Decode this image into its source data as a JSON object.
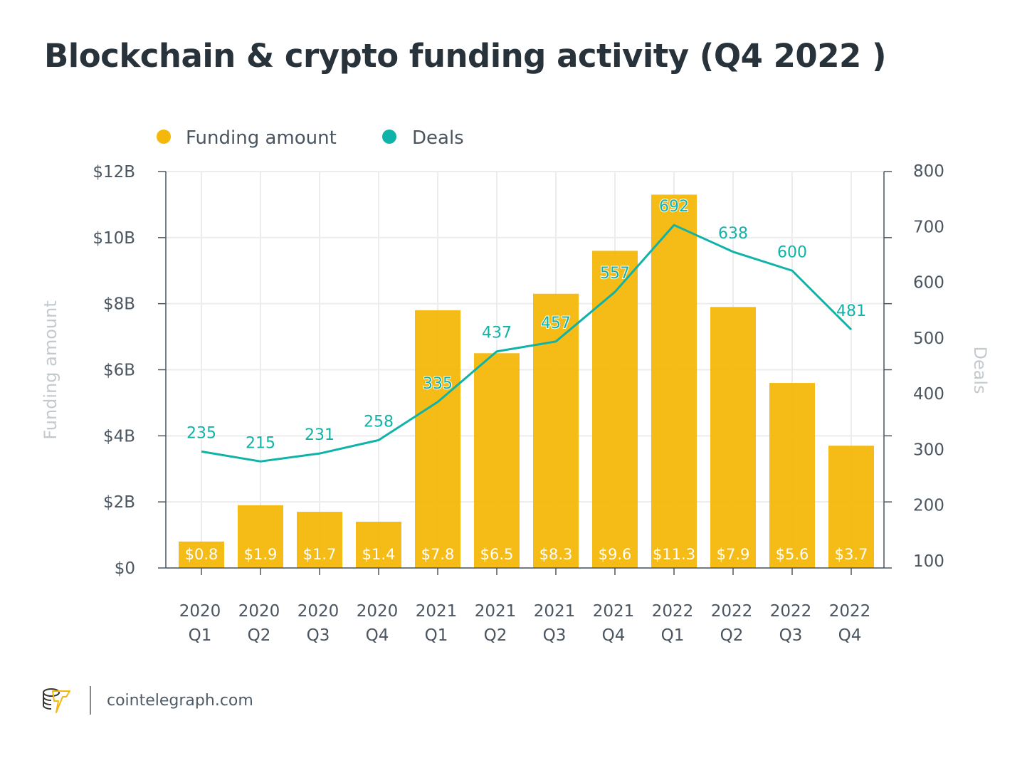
{
  "footer": {
    "site": "cointelegraph.com",
    "logo_text": "cointelegraph"
  },
  "chart_data": {
    "type": "bar+line",
    "title": "Blockchain & crypto funding activity (Q4 2022 )",
    "categories": [
      [
        "2020",
        "Q1"
      ],
      [
        "2020",
        "Q2"
      ],
      [
        "2020",
        "Q3"
      ],
      [
        "2020",
        "Q4"
      ],
      [
        "2021",
        "Q1"
      ],
      [
        "2021",
        "Q2"
      ],
      [
        "2021",
        "Q3"
      ],
      [
        "2021",
        "Q4"
      ],
      [
        "2022",
        "Q1"
      ],
      [
        "2022",
        "Q2"
      ],
      [
        "2022",
        "Q3"
      ],
      [
        "2022",
        "Q4"
      ]
    ],
    "series": [
      {
        "name": "Funding amount",
        "type": "bar",
        "axis": "left",
        "color": "#f4b70a",
        "values": [
          0.8,
          1.9,
          1.7,
          1.4,
          7.8,
          6.5,
          8.3,
          9.6,
          11.3,
          7.9,
          5.6,
          3.7
        ],
        "labels": [
          "$0.8",
          "$1.9",
          "$1.7",
          "$1.4",
          "$7.8",
          "$6.5",
          "$8.3",
          "$9.6",
          "$11.3",
          "$7.9",
          "$5.6",
          "$3.7"
        ]
      },
      {
        "name": "Deals",
        "type": "line",
        "axis": "right",
        "color": "#0fb3a7",
        "values": [
          235,
          215,
          231,
          258,
          335,
          437,
          457,
          557,
          692,
          638,
          600,
          481
        ]
      }
    ],
    "ylabel_left": "Funding amount",
    "ylabel_right": "Deals",
    "ylim_left": [
      0,
      12
    ],
    "yticks_left": [
      "$0",
      "$2B",
      "$4B",
      "$6B",
      "$8B",
      "$10B",
      "$12B"
    ],
    "ylim_right": [
      0,
      800
    ],
    "yticks_right": [
      "100",
      "200",
      "300",
      "400",
      "500",
      "600",
      "700",
      "800"
    ],
    "grid": true,
    "legend": "top-left"
  }
}
